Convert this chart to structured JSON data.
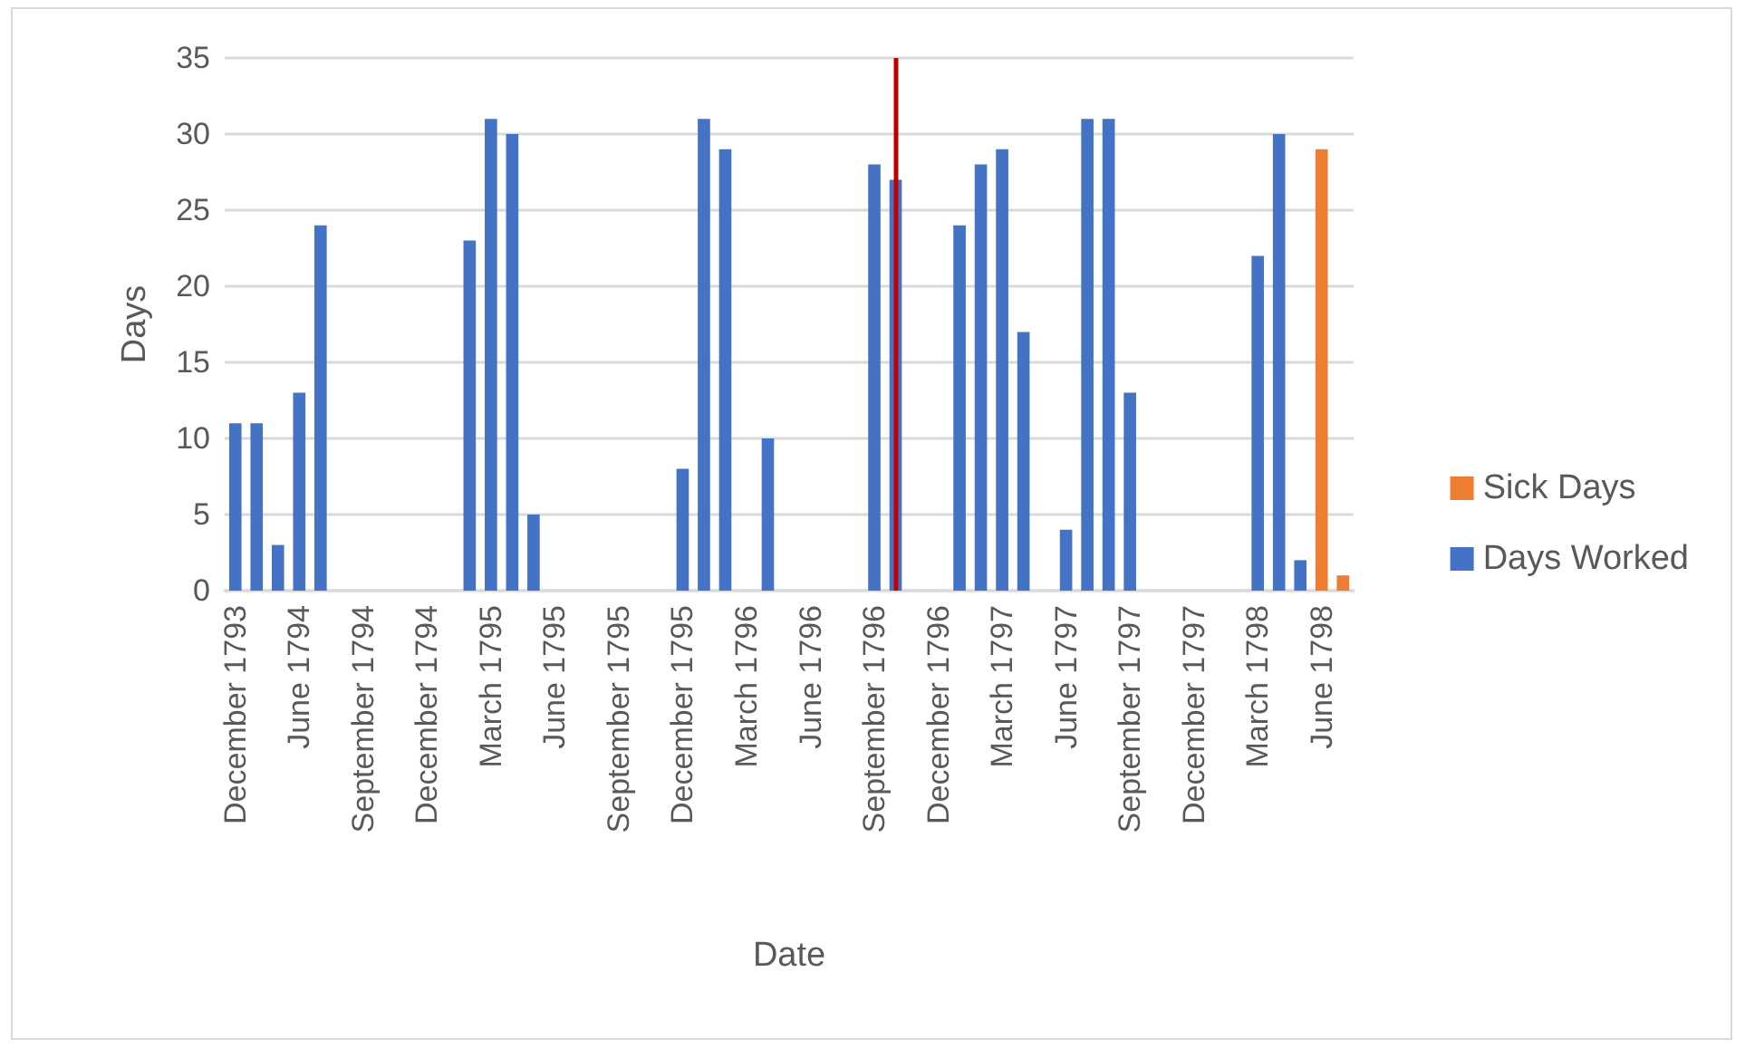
{
  "chart_data": {
    "type": "bar",
    "xlabel": "Date",
    "ylabel": "Days",
    "categories": [
      "December 1793",
      null,
      null,
      "June 1794",
      null,
      null,
      "September 1794",
      null,
      null,
      "December 1794",
      null,
      null,
      "March 1795",
      null,
      null,
      "June 1795",
      null,
      null,
      "September 1795",
      null,
      null,
      "December 1795",
      null,
      null,
      "March 1796",
      null,
      null,
      "June 1796",
      null,
      null,
      "September 1796",
      null,
      null,
      "December 1796",
      null,
      null,
      "March 1797",
      null,
      null,
      "June 1797",
      null,
      null,
      "September 1797",
      null,
      null,
      "December 1797",
      null,
      null,
      "March 1798",
      null,
      null,
      "June 1798",
      null
    ],
    "series": [
      {
        "name": "Days Worked",
        "color": "#4472c4",
        "values": [
          11,
          11,
          3,
          13,
          24,
          null,
          null,
          null,
          null,
          null,
          null,
          23,
          31,
          30,
          5,
          null,
          null,
          null,
          null,
          null,
          null,
          8,
          31,
          29,
          null,
          10,
          null,
          null,
          null,
          null,
          28,
          27,
          null,
          null,
          24,
          28,
          29,
          17,
          null,
          4,
          31,
          31,
          13,
          null,
          null,
          null,
          null,
          null,
          22,
          30,
          2,
          null,
          null
        ]
      },
      {
        "name": "Sick Days",
        "color": "#ed7d31",
        "values": [
          null,
          null,
          null,
          null,
          null,
          null,
          null,
          null,
          null,
          null,
          null,
          null,
          null,
          null,
          null,
          null,
          null,
          null,
          null,
          null,
          null,
          null,
          null,
          null,
          null,
          null,
          null,
          null,
          null,
          null,
          null,
          null,
          null,
          null,
          null,
          null,
          null,
          null,
          null,
          null,
          null,
          null,
          null,
          null,
          null,
          null,
          null,
          null,
          null,
          null,
          null,
          29,
          1
        ]
      }
    ],
    "stacked": true,
    "ylim": [
      0,
      35
    ],
    "yticks": [
      0,
      5,
      10,
      15,
      20,
      25,
      30,
      35
    ],
    "grid": "y",
    "legend": "right"
  }
}
